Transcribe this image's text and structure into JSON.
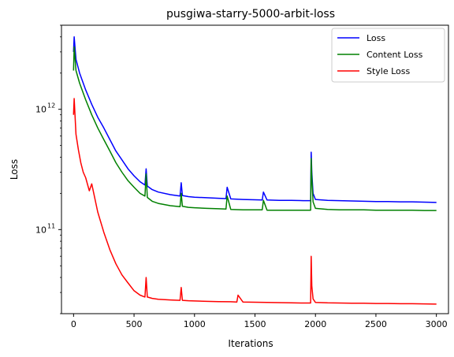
{
  "chart_data": {
    "type": "line",
    "title": "pusgiwa-starry-5000-arbit-loss",
    "xlabel": "Iterations",
    "ylabel": "Loss",
    "yscale": "log",
    "xlim": [
      -100,
      3100
    ],
    "ylim": [
      20000000000,
      5000000000000
    ],
    "x_ticks": [
      0,
      500,
      1000,
      1500,
      2000,
      2500,
      3000
    ],
    "x_tick_labels": [
      "0",
      "500",
      "1000",
      "1500",
      "2000",
      "2500",
      "3000"
    ],
    "y_ticks": [
      100000000000,
      1000000000000
    ],
    "y_tick_labels": [
      {
        "base": "10",
        "exp": "11"
      },
      {
        "base": "10",
        "exp": "12"
      }
    ],
    "grid": false,
    "legend_position": "top-right",
    "series": [
      {
        "name": "Loss",
        "color": "#0000ff",
        "x": [
          0,
          5,
          20,
          50,
          100,
          150,
          200,
          250,
          300,
          350,
          400,
          450,
          500,
          550,
          590,
          600,
          610,
          650,
          700,
          800,
          880,
          890,
          900,
          950,
          1000,
          1100,
          1200,
          1260,
          1270,
          1300,
          1400,
          1500,
          1560,
          1570,
          1600,
          1700,
          1800,
          1900,
          1960,
          1965,
          1970,
          1980,
          2000,
          2100,
          2200,
          2300,
          2400,
          2500,
          2600,
          2700,
          2800,
          2900,
          3000
        ],
        "y": [
          3000000000000,
          4000000000000,
          2600000000000,
          2000000000000,
          1450000000000,
          1100000000000,
          860000000000,
          700000000000,
          560000000000,
          450000000000,
          380000000000,
          320000000000,
          280000000000,
          250000000000,
          235000000000,
          320000000000,
          230000000000,
          215000000000,
          205000000000,
          195000000000,
          190000000000,
          245000000000,
          192000000000,
          188000000000,
          186000000000,
          184000000000,
          182000000000,
          181000000000,
          225000000000,
          180000000000,
          178000000000,
          177000000000,
          176000000000,
          205000000000,
          176000000000,
          175000000000,
          175000000000,
          174000000000,
          174000000000,
          440000000000,
          300000000000,
          200000000000,
          178000000000,
          175000000000,
          174000000000,
          173000000000,
          172000000000,
          171000000000,
          171000000000,
          170000000000,
          170000000000,
          169000000000,
          168000000000
        ]
      },
      {
        "name": "Content Loss",
        "color": "#008000",
        "x": [
          0,
          5,
          20,
          50,
          100,
          150,
          200,
          250,
          300,
          350,
          400,
          450,
          500,
          550,
          590,
          600,
          610,
          650,
          700,
          800,
          880,
          890,
          900,
          950,
          1000,
          1100,
          1200,
          1260,
          1270,
          1300,
          1400,
          1500,
          1560,
          1570,
          1600,
          1700,
          1800,
          1900,
          1960,
          1965,
          1970,
          1980,
          2000,
          2100,
          2200,
          2300,
          2400,
          2500,
          2600,
          2700,
          2800,
          2900,
          3000
        ],
        "y": [
          2100000000000,
          3300000000000,
          2100000000000,
          1650000000000,
          1200000000000,
          900000000000,
          700000000000,
          560000000000,
          450000000000,
          360000000000,
          300000000000,
          255000000000,
          225000000000,
          200000000000,
          190000000000,
          290000000000,
          185000000000,
          172000000000,
          165000000000,
          158000000000,
          155000000000,
          200000000000,
          156000000000,
          153000000000,
          152000000000,
          150000000000,
          149000000000,
          148000000000,
          190000000000,
          147000000000,
          146000000000,
          146000000000,
          146000000000,
          175000000000,
          145000000000,
          145000000000,
          145000000000,
          145000000000,
          145000000000,
          390000000000,
          270000000000,
          170000000000,
          150000000000,
          147000000000,
          146000000000,
          146000000000,
          146000000000,
          145000000000,
          145000000000,
          145000000000,
          145000000000,
          144000000000,
          144000000000
        ]
      },
      {
        "name": "Style Loss",
        "color": "#ff0000",
        "x": [
          0,
          5,
          20,
          40,
          60,
          80,
          100,
          130,
          150,
          200,
          250,
          300,
          350,
          400,
          450,
          500,
          550,
          590,
          600,
          610,
          650,
          700,
          800,
          880,
          890,
          900,
          950,
          1000,
          1100,
          1200,
          1300,
          1350,
          1360,
          1400,
          1500,
          1600,
          1700,
          1800,
          1900,
          1960,
          1965,
          1970,
          1980,
          2000,
          2100,
          2200,
          2300,
          2400,
          2500,
          2600,
          2700,
          2800,
          2900,
          3000
        ],
        "y": [
          900000000000,
          1230000000000,
          620000000000,
          460000000000,
          360000000000,
          300000000000,
          270000000000,
          210000000000,
          240000000000,
          140000000000,
          95000000000,
          68000000000,
          52000000000,
          42000000000,
          36000000000,
          31000000000,
          28500000000,
          27500000000,
          40000000000,
          27500000000,
          26800000000,
          26300000000,
          26000000000,
          25800000000,
          33000000000,
          25800000000,
          25600000000,
          25500000000,
          25300000000,
          25200000000,
          25100000000,
          25000000000,
          28500000000,
          25000000000,
          24900000000,
          24800000000,
          24700000000,
          24600000000,
          24500000000,
          24500000000,
          60000000000,
          34000000000,
          26500000000,
          24800000000,
          24600000000,
          24500000000,
          24400000000,
          24400000000,
          24300000000,
          24300000000,
          24200000000,
          24200000000,
          24100000000,
          24000000000
        ]
      }
    ]
  }
}
